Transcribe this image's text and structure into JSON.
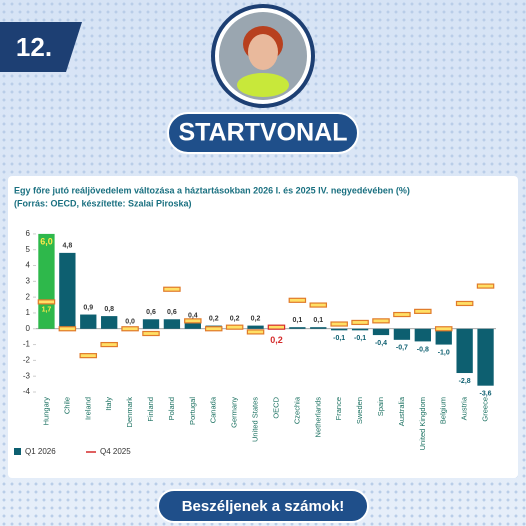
{
  "badge": "12.",
  "brand": "STARTVONAL",
  "footer": "Beszéljenek a számok!",
  "chart_data": {
    "type": "bar",
    "title": "Egy főre jutó reáljövedelem változása a háztartásokban 2026 I. és 2025 IV. negyedévében (%)",
    "subtitle": "(Forrás: OECD, készítette: Szalai Piroska)",
    "categories": [
      "Hungary",
      "Chile",
      "Ireland",
      "Italy",
      "Denmark",
      "Finland",
      "Poland",
      "Portugal",
      "Canada",
      "Germany",
      "United States",
      "OECD",
      "Czechia",
      "Netherlands",
      "France",
      "Sweden",
      "Spain",
      "Australia",
      "United Kingdom",
      "Belgium",
      "Austria",
      "Greece"
    ],
    "series": [
      {
        "name": "Q1 2026",
        "color": "#0d5f70",
        "colors": [
          "#2eb84b",
          "#0d5f70",
          "#0d5f70",
          "#0d5f70",
          "#0d5f70",
          "#0d5f70",
          "#0d5f70",
          "#0d5f70",
          "#0d5f70",
          "#0d5f70",
          "#0d5f70",
          "#d42a2a",
          "#0d5f70",
          "#0d5f70",
          "#0d5f70",
          "#0d5f70",
          "#0d5f70",
          "#0d5f70",
          "#0d5f70",
          "#0d5f70",
          "#0d5f70",
          "#0d5f70"
        ],
        "values": [
          6.0,
          4.8,
          0.9,
          0.8,
          0.0,
          0.6,
          0.6,
          0.4,
          0.2,
          0.2,
          0.2,
          0.2,
          0.1,
          0.1,
          -0.1,
          -0.1,
          -0.4,
          -0.7,
          -0.8,
          -1.0,
          -2.8,
          -3.6
        ],
        "value_labels": [
          "6,0",
          "4,8",
          "0,9",
          "0,8",
          "0,0",
          "0,6",
          "0,6",
          "0,4",
          "0,2",
          "0,2",
          "0,2",
          "0,2",
          "0,1",
          "0,1",
          "-0,1",
          "-0,1",
          "-0,4",
          "-0,7",
          "-0,8",
          "-1,0",
          "-2,8",
          "-3,6"
        ]
      },
      {
        "name": "Q4 2025",
        "color": "#d42a2a",
        "colors": [
          "#e07a2a",
          "#e07a2a",
          "#e07a2a",
          "#e07a2a",
          "#e07a2a",
          "#e07a2a",
          "#e07a2a",
          "#e07a2a",
          "#e07a2a",
          "#e07a2a",
          "#e07a2a",
          "#d42a2a",
          "#e07a2a",
          "#e07a2a",
          "#e07a2a",
          "#e07a2a",
          "#e07a2a",
          "#e07a2a",
          "#e07a2a",
          "#e07a2a",
          "#e07a2a",
          "#e07a2a"
        ],
        "values": [
          1.7,
          0.0,
          -1.7,
          -1.0,
          0.0,
          -0.3,
          2.5,
          0.5,
          0.0,
          0.1,
          -0.2,
          0.1,
          1.8,
          1.5,
          0.3,
          0.4,
          0.5,
          0.9,
          1.1,
          0.0,
          1.6,
          2.7
        ],
        "value_labels": [
          "1,7",
          null,
          null,
          null,
          null,
          null,
          null,
          null,
          null,
          null,
          null,
          null,
          null,
          null,
          null,
          null,
          null,
          null,
          null,
          null,
          null,
          null
        ]
      }
    ],
    "ylim": [
      -4,
      6.5
    ],
    "yticks": [
      -4,
      -3,
      -2,
      -1,
      0,
      1,
      2,
      3,
      4,
      5,
      6
    ],
    "grid": false
  }
}
